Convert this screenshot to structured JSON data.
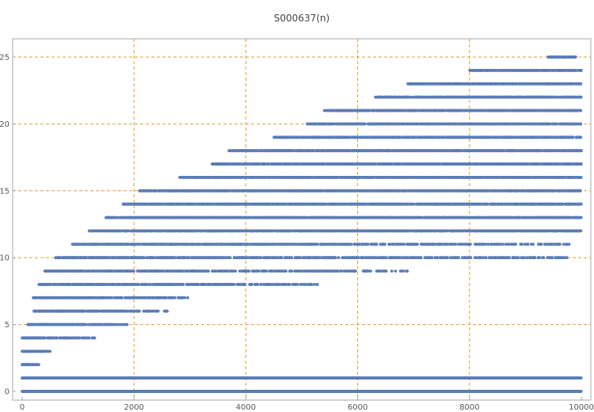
{
  "chart_data": {
    "type": "scatter",
    "title": "S000637(n)",
    "xlabel": "",
    "ylabel": "",
    "xlim": [
      0,
      10000
    ],
    "ylim": [
      0,
      25
    ],
    "x_ticks": [
      0,
      2000,
      4000,
      6000,
      8000,
      10000
    ],
    "y_ticks": [
      0,
      5,
      10,
      15,
      20,
      25
    ],
    "grid": true,
    "grid_style": "dashed",
    "grid_x": [
      2000,
      4000,
      6000,
      8000
    ],
    "grid_y": [
      5,
      10,
      15,
      20,
      25
    ],
    "colors": {
      "points": "#5b7db8",
      "grid": "#e69b2e",
      "frame": "#a7a7a7"
    },
    "n_points": 10000,
    "bands": [
      {
        "y": 0,
        "from": 0,
        "to": 10000,
        "density": 1.0
      },
      {
        "y": 1,
        "from": 0,
        "to": 10000,
        "density": 1.0
      },
      {
        "y": 2,
        "from": 0,
        "to": 300,
        "density": 0.9
      },
      {
        "y": 3,
        "from": 0,
        "to": 500,
        "density": 0.9
      },
      {
        "y": 4,
        "from": 0,
        "to": 1300,
        "density": 0.8
      },
      {
        "y": 5,
        "from": 100,
        "to": 1900,
        "density": 0.75
      },
      {
        "y": 6,
        "from": 200,
        "to": 2700,
        "density": 0.7
      },
      {
        "y": 7,
        "from": 200,
        "to": 3000,
        "density": 0.65
      },
      {
        "y": 8,
        "from": 300,
        "to": 5300,
        "density": 0.6
      },
      {
        "y": 9,
        "from": 400,
        "to": 6900,
        "density": 0.55
      },
      {
        "y": 10,
        "from": 600,
        "to": 9800,
        "density": 0.5
      },
      {
        "y": 11,
        "from": 900,
        "to": 9800,
        "density": 0.6
      },
      {
        "y": 12,
        "from": 1200,
        "to": 10000,
        "density": 0.6
      },
      {
        "y": 13,
        "from": 1500,
        "to": 10000,
        "density": 0.6
      },
      {
        "y": 14,
        "from": 1800,
        "to": 10000,
        "density": 0.6
      },
      {
        "y": 15,
        "from": 2100,
        "to": 10000,
        "density": 0.6
      },
      {
        "y": 16,
        "from": 2800,
        "to": 10000,
        "density": 0.6
      },
      {
        "y": 17,
        "from": 3400,
        "to": 10000,
        "density": 0.6
      },
      {
        "y": 18,
        "from": 3700,
        "to": 10000,
        "density": 0.6
      },
      {
        "y": 19,
        "from": 4500,
        "to": 10000,
        "density": 0.6
      },
      {
        "y": 20,
        "from": 5100,
        "to": 10000,
        "density": 0.6
      },
      {
        "y": 21,
        "from": 5400,
        "to": 10000,
        "density": 0.6
      },
      {
        "y": 22,
        "from": 6300,
        "to": 10000,
        "density": 0.6
      },
      {
        "y": 23,
        "from": 6900,
        "to": 10000,
        "density": 0.6
      },
      {
        "y": 24,
        "from": 8000,
        "to": 10000,
        "density": 0.6
      },
      {
        "y": 25,
        "from": 9400,
        "to": 9900,
        "density": 0.6
      }
    ]
  }
}
